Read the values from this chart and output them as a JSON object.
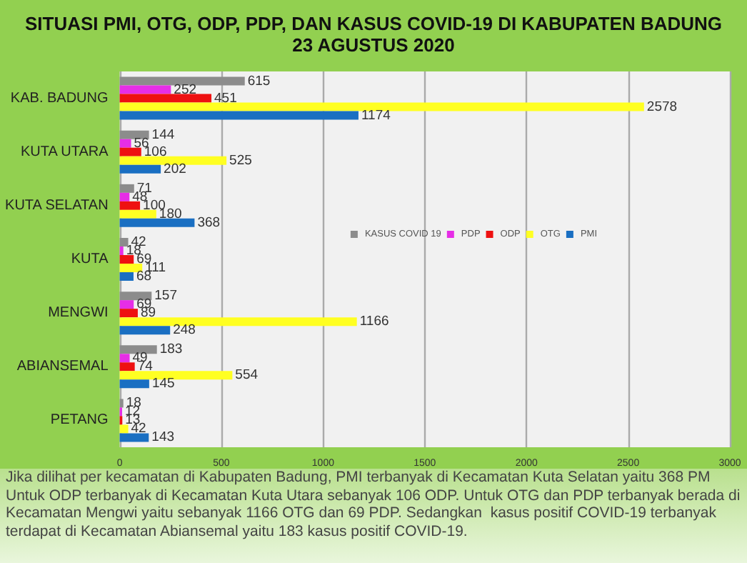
{
  "chart_data": {
    "type": "bar",
    "orientation": "horizontal",
    "title": "SITUASI PMI, OTG, ODP, PDP, DAN KASUS COVID-19 DI KABUPATEN BADUNG\n23 AGUSTUS 2020",
    "categories": [
      "KAB. BADUNG",
      "KUTA UTARA",
      "KUTA SELATAN",
      "KUTA",
      "MENGWI",
      "ABIANSEMAL",
      "PETANG"
    ],
    "series": [
      {
        "name": "KASUS COVID 19",
        "color": "#8c8c8c",
        "values": [
          615,
          144,
          71,
          42,
          157,
          183,
          18
        ]
      },
      {
        "name": "PDP",
        "color": "#e62ee6",
        "values": [
          252,
          56,
          48,
          18,
          69,
          49,
          12
        ]
      },
      {
        "name": "ODP",
        "color": "#ee1111",
        "values": [
          451,
          106,
          100,
          69,
          89,
          74,
          13
        ]
      },
      {
        "name": "OTG",
        "color": "#ffff22",
        "values": [
          2578,
          525,
          180,
          111,
          1166,
          554,
          42
        ]
      },
      {
        "name": "PMI",
        "color": "#1a6fc2",
        "values": [
          1174,
          202,
          368,
          68,
          248,
          145,
          143
        ]
      }
    ],
    "xlim": [
      0,
      3000
    ],
    "xticks": [
      0,
      500,
      1000,
      1500,
      2000,
      2500,
      3000
    ],
    "grid": "x",
    "legend": "right",
    "data_labels": true,
    "annotations": [
      "Jika dilihat per kecamatan di Kabupaten Badung, PMI terbanyak di Kecamatan Kuta Selatan yaitu 368 PM Untuk ODP terbanyak di Kecamatan Kuta Utara sebanyak 106 ODP. Untuk OTG dan PDP terbanyak berada di Kecamatan Mengwi yaitu sebanyak 1166 OTG dan 69 PDP. Sedangkan  kasus positif COVID-19 terbanyak terdapat di Kecamatan Abiansemal yaitu 183 kasus positif COVID-19."
    ]
  }
}
